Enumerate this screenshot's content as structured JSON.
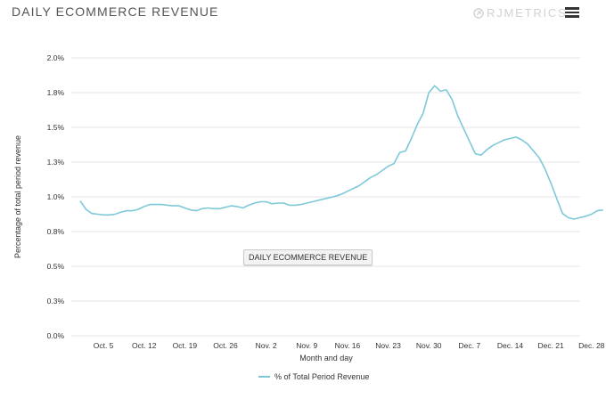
{
  "header": {
    "title": "DAILY ECOMMERCE REVENUE",
    "brand": "RJMETRICS",
    "brand_icon": "rj-logo-icon",
    "menu_icon": "hamburger-menu-icon"
  },
  "overlay_label": "DAILY ECOMMERCE REVENUE",
  "colors": {
    "series": "#7ec9d9",
    "grid": "#e6e6e6",
    "axis_text": "#333333",
    "brand": "#d2d2d2"
  },
  "chart_data": {
    "type": "line",
    "title": "",
    "xlabel": "Month and day",
    "ylabel": "Percentage of total period revenue",
    "x_range": [
      0,
      63
    ],
    "ylim": [
      0,
      2.0
    ],
    "y_ticks": [
      0,
      0.25,
      0.5,
      0.75,
      1.0,
      1.25,
      1.5,
      1.75,
      2.0
    ],
    "y_tick_labels": [
      "0.0%",
      "0.3%",
      "0.5%",
      "0.8%",
      "1.0%",
      "1.3%",
      "1.5%",
      "1.8%",
      "2.0%"
    ],
    "x_ticks": [
      {
        "label": "Oct. 5",
        "day": 4
      },
      {
        "label": "Oct. 12",
        "day": 11
      },
      {
        "label": "Oct. 19",
        "day": 18
      },
      {
        "label": "Oct. 26",
        "day": 25
      },
      {
        "label": "Nov. 2",
        "day": 32
      },
      {
        "label": "Nov. 9",
        "day": 39
      },
      {
        "label": "Nov. 16",
        "day": 46
      },
      {
        "label": "Nov. 23",
        "day": 53
      },
      {
        "label": "Nov. 30",
        "day": 60
      },
      {
        "label": "Dec. 7",
        "day": 67
      },
      {
        "label": "Dec. 14",
        "day": 74
      },
      {
        "label": "Dec. 21",
        "day": 81
      },
      {
        "label": "Dec. 28",
        "day": 88
      }
    ],
    "grid": true,
    "legend_position": "bottom-center",
    "series": [
      {
        "name": "% of Total Period Revenue",
        "x_days": [
          0,
          1,
          2,
          3,
          4,
          5,
          6,
          7,
          8,
          9,
          10,
          11,
          12,
          13,
          14,
          15,
          16,
          17,
          18,
          19,
          20,
          21,
          22,
          23,
          24,
          25,
          26,
          27,
          28,
          29,
          30,
          31,
          32,
          33,
          34,
          35,
          36,
          37,
          38,
          39,
          40,
          41,
          42,
          43,
          44,
          45,
          46,
          47,
          48,
          49,
          50,
          51,
          52,
          53,
          54,
          55,
          56,
          57,
          58,
          59,
          60,
          61,
          62,
          63,
          64,
          65,
          66,
          67,
          68,
          69,
          70,
          71,
          72,
          73,
          74,
          75,
          76,
          77,
          78,
          79,
          80,
          81,
          82,
          83,
          84,
          85,
          86,
          87,
          88,
          89,
          90
        ],
        "values": [
          0.97,
          0.91,
          0.88,
          0.875,
          0.87,
          0.87,
          0.875,
          0.89,
          0.9,
          0.9,
          0.91,
          0.93,
          0.945,
          0.945,
          0.945,
          0.94,
          0.935,
          0.935,
          0.92,
          0.905,
          0.9,
          0.915,
          0.92,
          0.915,
          0.915,
          0.925,
          0.935,
          0.93,
          0.92,
          0.94,
          0.955,
          0.965,
          0.965,
          0.95,
          0.955,
          0.955,
          0.94,
          0.94,
          0.945,
          0.955,
          0.965,
          0.975,
          0.985,
          0.995,
          1.005,
          1.02,
          1.04,
          1.06,
          1.08,
          1.11,
          1.14,
          1.16,
          1.19,
          1.22,
          1.24,
          1.32,
          1.33,
          1.42,
          1.52,
          1.6,
          1.75,
          1.8,
          1.76,
          1.77,
          1.7,
          1.58,
          1.49,
          1.4,
          1.31,
          1.3,
          1.34,
          1.37,
          1.39,
          1.41,
          1.42,
          1.43,
          1.41,
          1.38,
          1.33,
          1.28,
          1.2,
          1.1,
          0.99,
          0.88,
          0.85,
          0.84,
          0.85,
          0.86,
          0.875,
          0.9,
          0.905
        ]
      }
    ]
  }
}
